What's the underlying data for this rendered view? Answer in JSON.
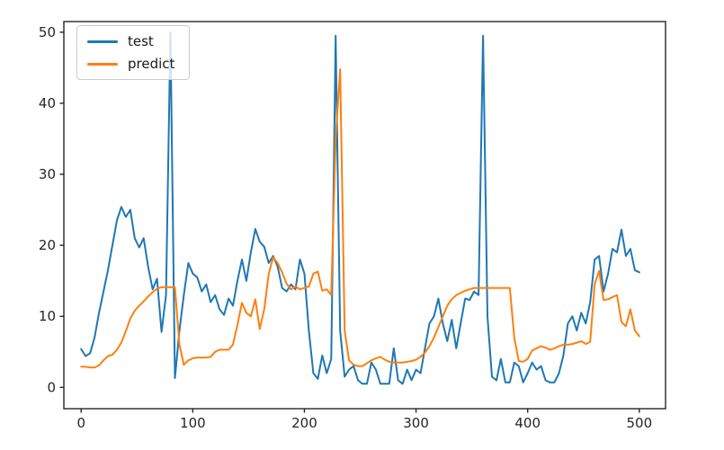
{
  "chart_data": {
    "type": "line",
    "title": "",
    "xlabel": "",
    "ylabel": "",
    "grid": false,
    "xlim": [
      -15.5,
      523.5
    ],
    "ylim": [
      -3.0,
      51.5
    ],
    "xticks": [
      0,
      100,
      200,
      300,
      400,
      500
    ],
    "yticks": [
      0,
      10,
      20,
      30,
      40,
      50
    ],
    "axis_color": "#262626",
    "tick_label_color": "#262626",
    "legend": {
      "position": "upper-left",
      "entries": [
        "test",
        "predict"
      ]
    },
    "x": [
      0,
      4,
      8,
      12,
      16,
      20,
      24,
      28,
      32,
      36,
      40,
      44,
      48,
      52,
      56,
      60,
      64,
      68,
      72,
      76,
      80,
      84,
      88,
      92,
      96,
      100,
      104,
      108,
      112,
      116,
      120,
      124,
      128,
      132,
      136,
      140,
      144,
      148,
      152,
      156,
      160,
      164,
      168,
      172,
      176,
      180,
      184,
      188,
      192,
      196,
      200,
      204,
      208,
      212,
      216,
      220,
      224,
      228,
      232,
      236,
      240,
      244,
      248,
      252,
      256,
      260,
      264,
      268,
      272,
      276,
      280,
      284,
      288,
      292,
      296,
      300,
      304,
      308,
      312,
      316,
      320,
      324,
      328,
      332,
      336,
      340,
      344,
      348,
      352,
      356,
      360,
      364,
      368,
      372,
      376,
      380,
      384,
      388,
      392,
      396,
      400,
      404,
      408,
      412,
      416,
      420,
      424,
      428,
      432,
      436,
      440,
      444,
      448,
      452,
      456,
      460,
      464,
      468,
      472,
      476,
      480,
      484,
      488,
      492,
      496,
      500
    ],
    "series": [
      {
        "name": "test",
        "color": "#1f77b4",
        "values": [
          5.4,
          4.4,
          4.8,
          7.0,
          10.5,
          13.5,
          16.5,
          20.0,
          23.5,
          25.4,
          24.0,
          25.0,
          21.0,
          19.7,
          21.0,
          17.0,
          13.8,
          15.3,
          7.8,
          13.0,
          50.0,
          1.3,
          8.0,
          13.0,
          17.5,
          16.0,
          15.5,
          13.5,
          14.5,
          12.0,
          13.0,
          11.0,
          10.2,
          12.5,
          11.5,
          15.0,
          18.0,
          15.0,
          19.0,
          22.3,
          20.5,
          19.8,
          17.5,
          18.5,
          17.0,
          14.0,
          13.5,
          14.5,
          13.8,
          18.0,
          16.0,
          8.0,
          2.0,
          1.2,
          4.5,
          2.0,
          4.0,
          49.5,
          8.0,
          1.5,
          2.5,
          3.0,
          1.0,
          0.5,
          0.5,
          3.5,
          2.5,
          0.5,
          0.5,
          0.5,
          5.5,
          1.0,
          0.5,
          2.5,
          1.0,
          2.5,
          2.0,
          5.5,
          9.0,
          10.0,
          12.5,
          9.0,
          6.5,
          9.5,
          5.5,
          9.0,
          12.5,
          12.3,
          13.5,
          13.0,
          49.5,
          10.0,
          1.5,
          1.0,
          4.0,
          0.7,
          0.7,
          3.5,
          3.0,
          0.7,
          2.0,
          3.5,
          2.5,
          3.0,
          1.0,
          0.7,
          0.7,
          2.0,
          4.5,
          9.0,
          10.0,
          8.0,
          10.5,
          9.0,
          12.0,
          18.0,
          18.5,
          13.5,
          16.0,
          19.5,
          19.0,
          22.2,
          18.5,
          19.5,
          16.5,
          16.2
        ]
      },
      {
        "name": "predict",
        "color": "#ff7f0e",
        "values": [
          2.9,
          2.9,
          2.8,
          2.8,
          3.1,
          3.8,
          4.4,
          4.6,
          5.3,
          6.3,
          7.9,
          9.7,
          10.8,
          11.5,
          12.1,
          12.8,
          13.4,
          13.9,
          14.1,
          14.1,
          14.1,
          14.1,
          6.0,
          3.2,
          3.8,
          4.1,
          4.2,
          4.2,
          4.2,
          4.3,
          5.0,
          5.3,
          5.3,
          5.3,
          6.0,
          8.8,
          11.9,
          10.5,
          10.0,
          12.4,
          8.2,
          11.0,
          16.0,
          18.3,
          17.5,
          16.2,
          14.6,
          13.8,
          14.2,
          13.8,
          14.0,
          14.2,
          16.0,
          16.3,
          13.6,
          13.8,
          13.0,
          35.0,
          44.8,
          8.0,
          3.8,
          3.2,
          3.0,
          3.0,
          3.4,
          3.8,
          4.1,
          4.3,
          3.9,
          3.6,
          3.5,
          3.5,
          3.5,
          3.6,
          3.7,
          3.9,
          4.3,
          4.9,
          5.8,
          7.0,
          8.5,
          10.0,
          11.5,
          12.4,
          13.0,
          13.3,
          13.6,
          13.8,
          14.0,
          14.0,
          14.0,
          14.0,
          14.0,
          14.0,
          14.0,
          14.0,
          14.0,
          7.0,
          3.7,
          3.6,
          4.0,
          5.2,
          5.5,
          5.8,
          5.6,
          5.3,
          5.5,
          5.8,
          6.0,
          6.0,
          6.1,
          6.3,
          6.5,
          6.1,
          6.4,
          14.5,
          16.4,
          12.3,
          12.4,
          12.7,
          13.0,
          9.2,
          8.6,
          11.0,
          8.0,
          7.2
        ]
      }
    ]
  }
}
